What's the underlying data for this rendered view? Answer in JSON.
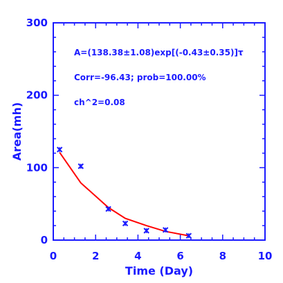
{
  "chart_data": {
    "type": "scatter",
    "xlabel": "Time (Day)",
    "ylabel": "Area(mh)",
    "xlim": [
      0,
      10
    ],
    "ylim": [
      0,
      300
    ],
    "xticks": [
      0,
      2,
      4,
      6,
      8,
      10
    ],
    "yticks": [
      0,
      100,
      200,
      300
    ],
    "grid": false,
    "annotations": [
      "A=(138.38±1.08)exp[(-0.43±0.35)]τ",
      "Corr=-96.43;   prob=100.00%",
      "ch^2=0.08"
    ],
    "series": [
      {
        "kind": "points",
        "marker": "x",
        "x": [
          0.3,
          1.3,
          2.6,
          3.4,
          4.4,
          5.3,
          6.4
        ],
        "y": [
          125,
          102,
          43,
          23,
          13,
          14,
          6
        ]
      },
      {
        "kind": "line",
        "x": [
          0.3,
          1.3,
          2.6,
          3.4,
          4.4,
          5.3,
          6.4
        ],
        "y": [
          121,
          79,
          45,
          30,
          20,
          12,
          6
        ]
      }
    ]
  },
  "colors": {
    "axis": "#1a1aff",
    "text": "#1a1aff",
    "points": "#1a1aff",
    "fit_line": "#ff0000",
    "background": "#ffffff"
  }
}
